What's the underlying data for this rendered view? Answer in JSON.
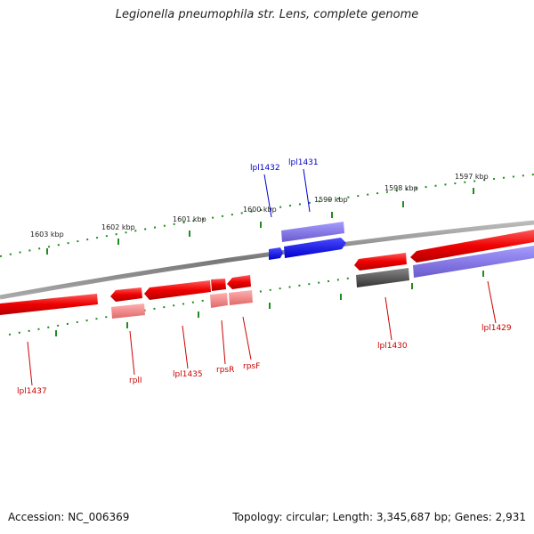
{
  "title": "Legionella pneumophila str. Lens, complete genome",
  "footer": {
    "accession": "Accession: NC_006369",
    "summary": "Topology: circular; Length: 3,345,687 bp; Genes: 2,931"
  },
  "scale": {
    "tick_labels": [
      "1603 kbp",
      "1602 kbp",
      "1601 kbp",
      "1600 kbp",
      "1599 kbp",
      "1598 kbp",
      "1597 kbp"
    ]
  },
  "genes": {
    "labels": [
      "lpl1437",
      "rplI",
      "lpl1435",
      "rpsR",
      "rpsF",
      "lpl1432",
      "lpl1431",
      "lpl1430",
      "lpl1429"
    ]
  },
  "colors": {
    "forward_gene": "#ff0000",
    "reverse_gene": "#ee0000",
    "blue_gene": "#0000ee",
    "purple_gene": "#7b68ee",
    "gray_gene": "#555555",
    "tick": "#228b22",
    "backbone": "#888888",
    "label_red": "#cc0000",
    "label_blue": "#0000cc"
  }
}
